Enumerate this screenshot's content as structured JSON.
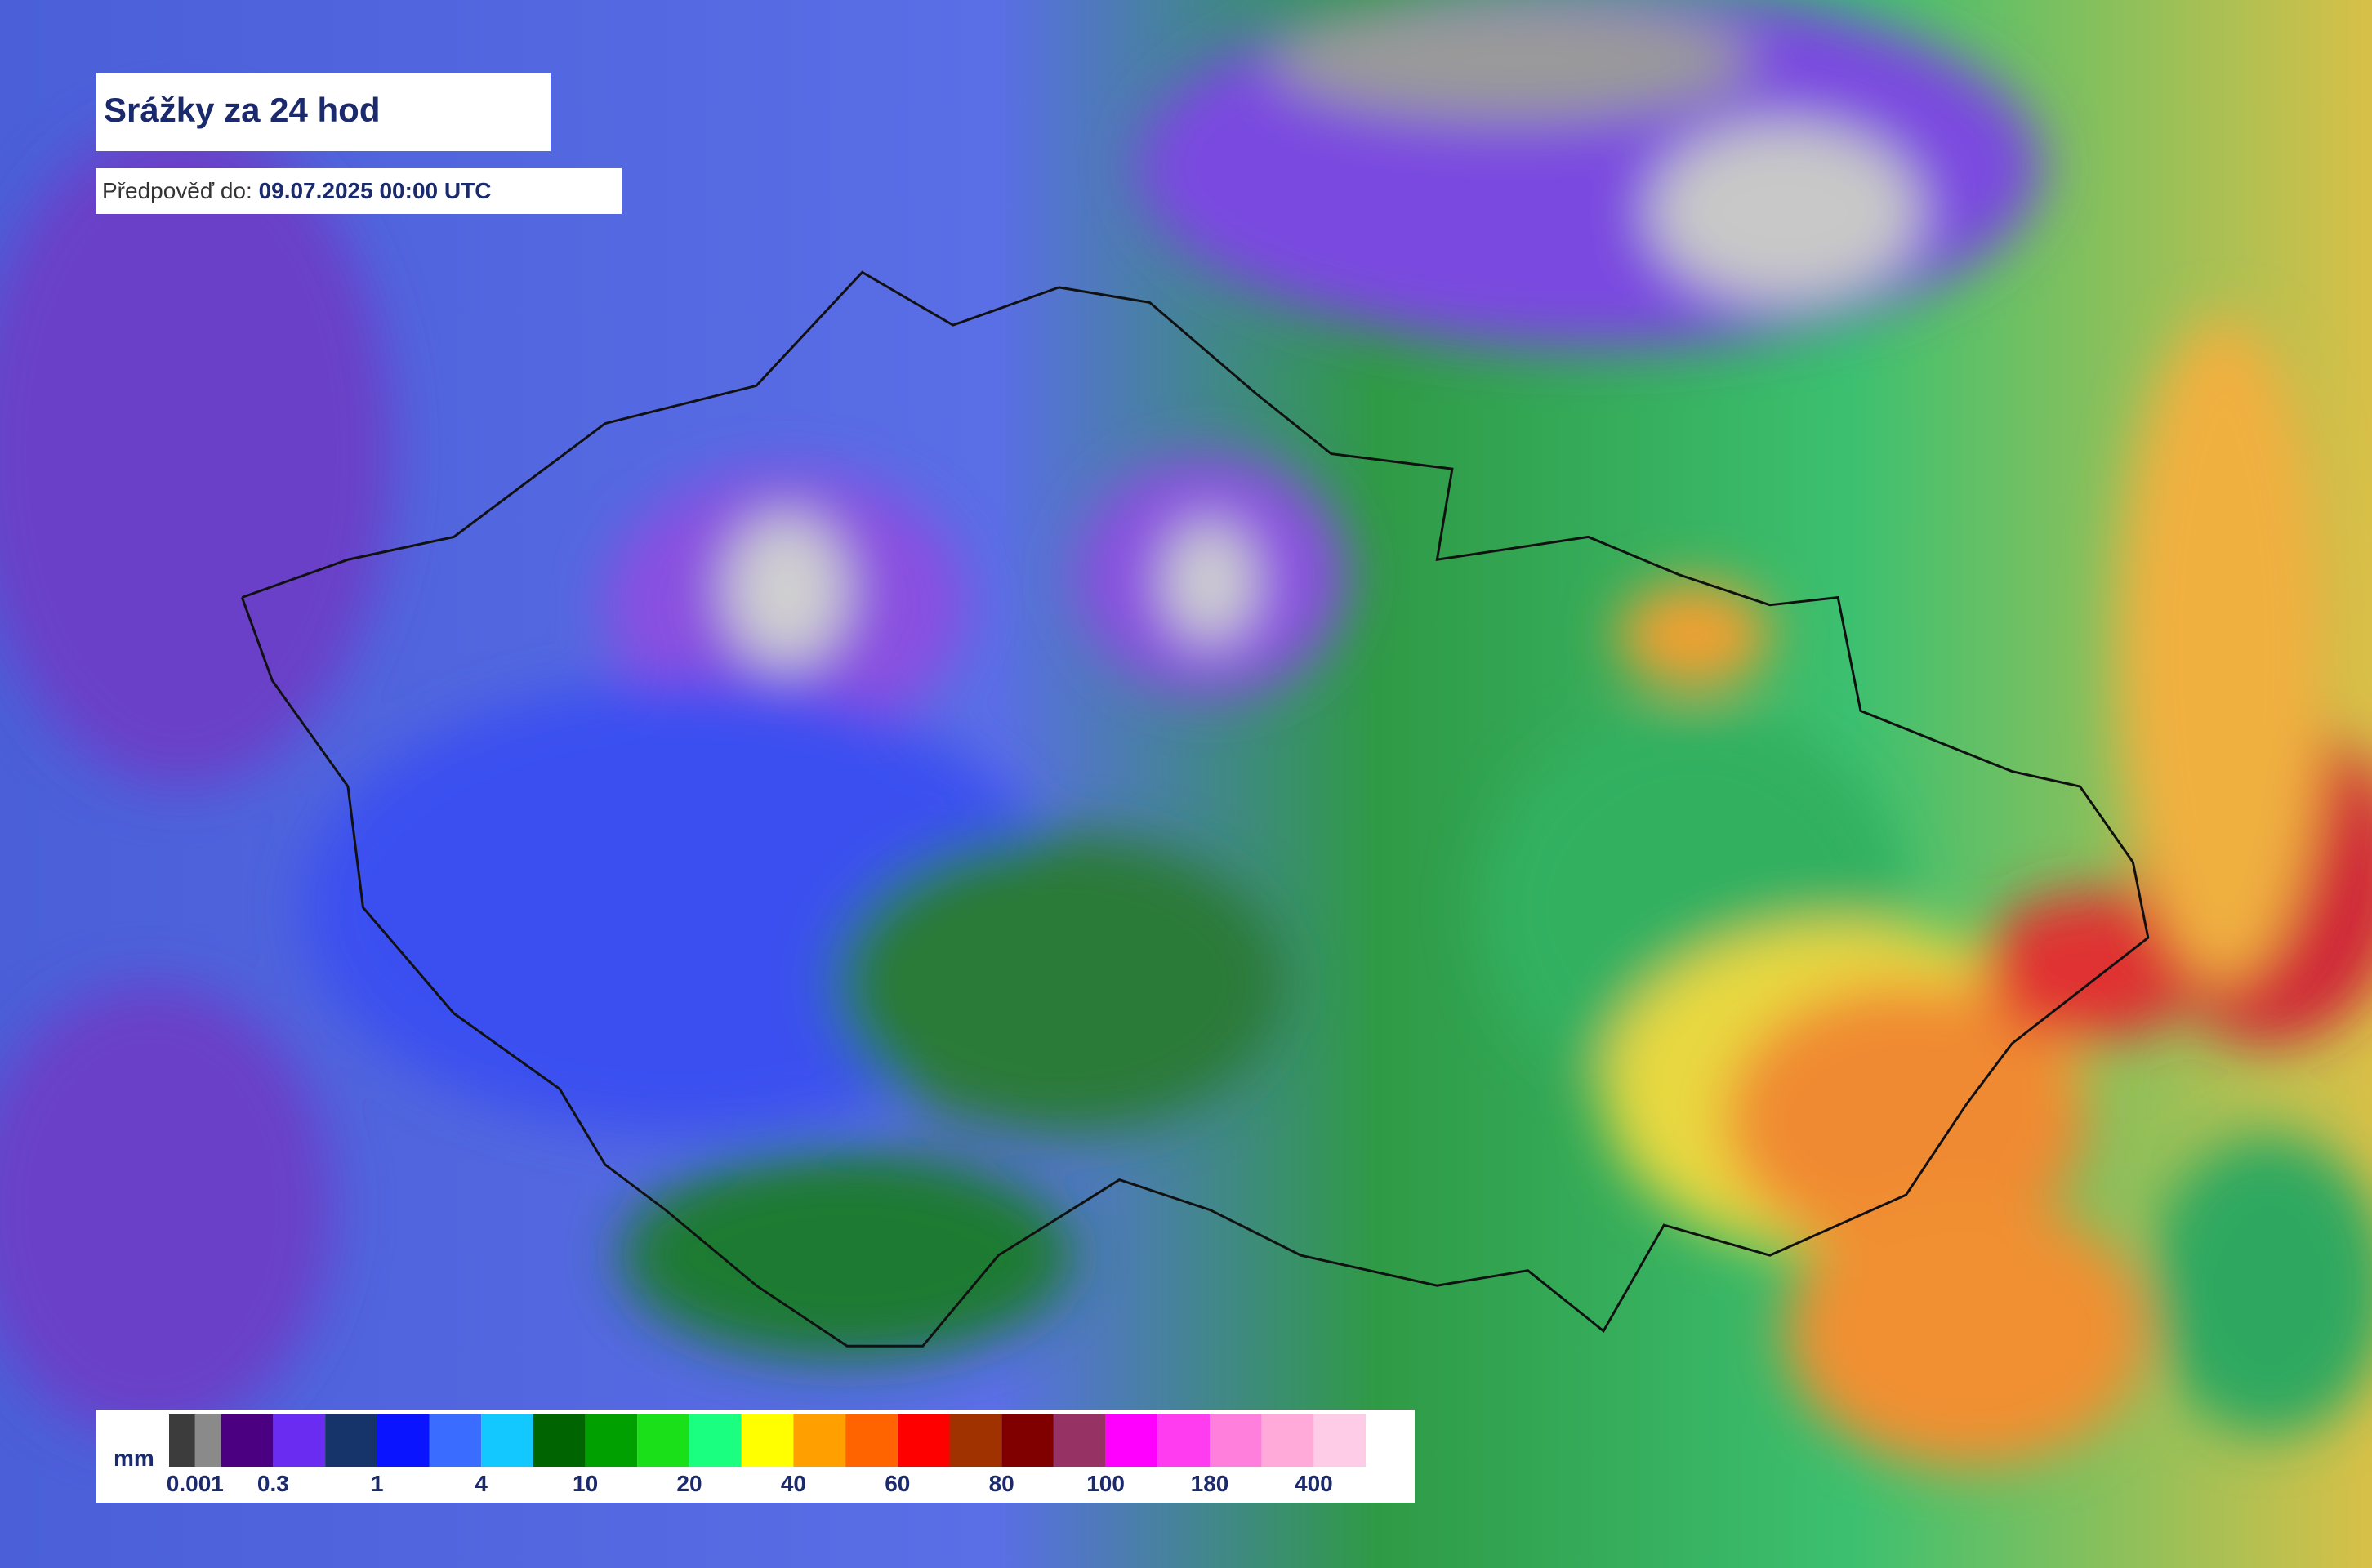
{
  "header": {
    "title": "Srážky za 24 hod",
    "forecast_label": "Předpověď do:",
    "forecast_time": "09.07.2025 00:00 UTC"
  },
  "legend": {
    "unit": "mm",
    "labels": [
      "0.001",
      "0.3",
      "1",
      "4",
      "10",
      "20",
      "40",
      "60",
      "80",
      "100",
      "180",
      "400"
    ],
    "colors": [
      [
        "#3c3c3c",
        "#8a8a8a"
      ],
      "#4b0082",
      "#6a2cf0",
      "#16346a",
      "#0a14ff",
      "#3a6cff",
      "#12c8ff",
      "#006400",
      "#00a000",
      "#19e019",
      "#1aff80",
      "#ffff00",
      "#ffa000",
      "#ff6400",
      "#ff0000",
      "#a03200",
      "#800000",
      "#963264",
      "#ff00ff",
      "#ff3cf0",
      "#ff80dc",
      "#ffaad8",
      "#ffcce8",
      "#ffffff"
    ]
  }
}
